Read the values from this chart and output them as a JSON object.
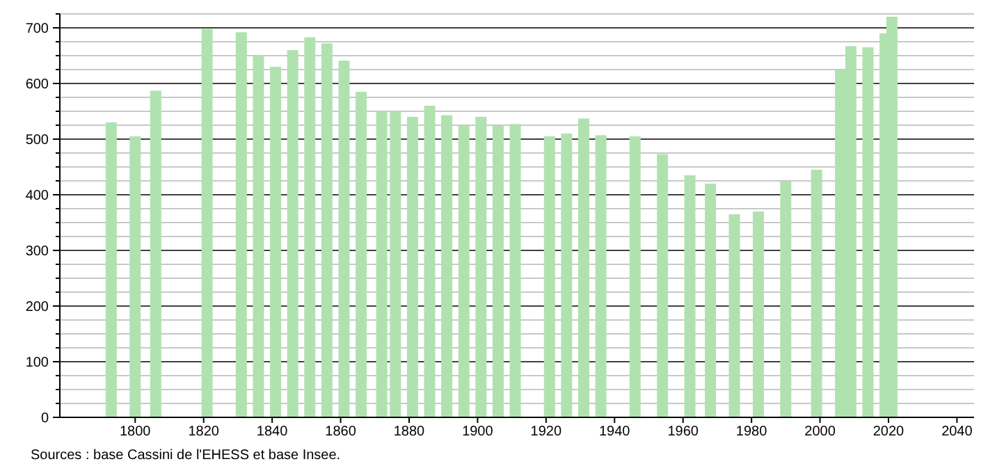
{
  "chart_data": {
    "type": "bar",
    "color": "#b0e2b0",
    "x": [
      1793,
      1800,
      1806,
      1821,
      1831,
      1836,
      1841,
      1846,
      1851,
      1856,
      1861,
      1866,
      1872,
      1876,
      1881,
      1886,
      1891,
      1896,
      1901,
      1906,
      1911,
      1921,
      1926,
      1931,
      1936,
      1946,
      1954,
      1962,
      1968,
      1975,
      1982,
      1990,
      1999,
      2006,
      2009,
      2014,
      2019,
      2021
    ],
    "values": [
      530,
      505,
      587,
      698,
      692,
      650,
      630,
      660,
      683,
      672,
      641,
      585,
      550,
      550,
      540,
      560,
      543,
      524,
      540,
      524,
      527,
      505,
      510,
      537,
      507,
      505,
      473,
      435,
      420,
      365,
      370,
      424,
      445,
      625,
      667,
      665,
      690,
      720
    ],
    "xlim": [
      1778,
      2045
    ],
    "xticks": [
      1800,
      1820,
      1840,
      1860,
      1880,
      1900,
      1920,
      1940,
      1960,
      1980,
      2000,
      2020,
      2040
    ],
    "ylim": [
      0,
      725
    ],
    "yticks": [
      0,
      {
        "value": 25,
        "label": null
      },
      {
        "value": 50,
        "label": null
      },
      {
        "value": 75,
        "label": null
      },
      100,
      {
        "value": 125,
        "label": null
      },
      {
        "value": 150,
        "label": null
      },
      {
        "value": 175,
        "label": null
      },
      200,
      {
        "value": 225,
        "label": null
      },
      {
        "value": 250,
        "label": null
      },
      {
        "value": 275,
        "label": null
      },
      300,
      {
        "value": 325,
        "label": null
      },
      {
        "value": 350,
        "label": null
      },
      {
        "value": 375,
        "label": null
      },
      400,
      {
        "value": 425,
        "label": null
      },
      {
        "value": 450,
        "label": null
      },
      {
        "value": 475,
        "label": null
      },
      500,
      {
        "value": 525,
        "label": null
      },
      {
        "value": 550,
        "label": null
      },
      {
        "value": 575,
        "label": null
      },
      600,
      {
        "value": 625,
        "label": null
      },
      {
        "value": 650,
        "label": null
      },
      {
        "value": 675,
        "label": null
      },
      700,
      {
        "value": 725,
        "label": null
      }
    ],
    "grid": "y",
    "annotations": [
      "Sources : base Cassini de l'EHESS et base Insee."
    ]
  }
}
